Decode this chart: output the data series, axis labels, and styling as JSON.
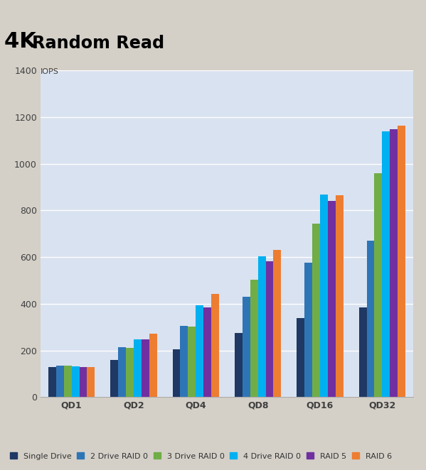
{
  "title": "4K Random Read",
  "ylabel": "IOPS",
  "categories": [
    "QD1",
    "QD2",
    "QD4",
    "QD8",
    "QD16",
    "QD32"
  ],
  "series": {
    "Single Drive": [
      130,
      160,
      205,
      275,
      340,
      385
    ],
    "2 Drive RAID 0": [
      135,
      213,
      305,
      430,
      575,
      670
    ],
    "3 Drive RAID 0": [
      135,
      210,
      302,
      503,
      743,
      960
    ],
    "4 Drive RAID 0": [
      132,
      247,
      393,
      605,
      868,
      1140
    ],
    "RAID 5": [
      130,
      248,
      385,
      582,
      840,
      1148
    ],
    "RAID 6": [
      128,
      272,
      443,
      630,
      865,
      1165
    ]
  },
  "colors": {
    "Single Drive": "#1F3864",
    "2 Drive RAID 0": "#2E75B6",
    "3 Drive RAID 0": "#70AD47",
    "4 Drive RAID 0": "#00B0F0",
    "RAID 5": "#7030A0",
    "RAID 6": "#ED7D31"
  },
  "ylim": [
    0,
    1400
  ],
  "yticks": [
    0,
    200,
    400,
    600,
    800,
    1000,
    1200,
    1400
  ],
  "plot_bg": "#D9E2F0",
  "outer_bg": "#D4D0C8",
  "grid_color": "#FFFFFF",
  "title_fontsize": 22,
  "ylabel_fontsize": 8,
  "tick_fontsize": 9,
  "legend_fontsize": 8,
  "bar_width": 0.125
}
